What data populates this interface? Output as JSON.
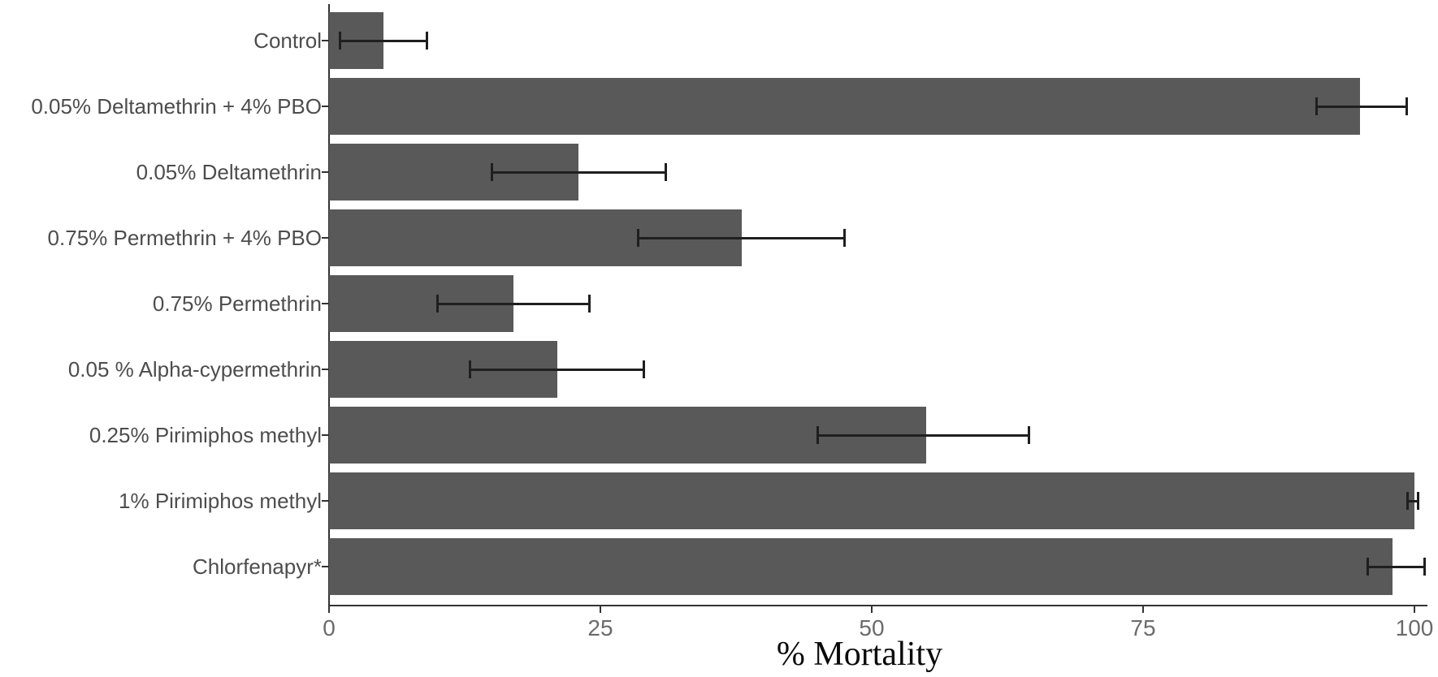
{
  "chart_data": {
    "type": "bar",
    "orientation": "horizontal",
    "title": "",
    "xlabel": "% Mortality",
    "ylabel": "",
    "xlim": [
      0,
      100
    ],
    "xticks": [
      0,
      25,
      50,
      75,
      100
    ],
    "grid": false,
    "legend": false,
    "bar_color": "#595959",
    "error_bar_color": "#1f1f1f",
    "axis_color": "#333333",
    "categories": [
      "Control",
      "0.05% Deltamethrin + 4% PBO",
      "0.05% Deltamethrin",
      "0.75% Permethrin + 4% PBO",
      "0.75% Permethrin",
      "0.05 % Alpha-cypermethrin",
      "0.25% Pirimiphos methyl",
      "1% Pirimiphos methyl",
      "Chlorfenapyr*"
    ],
    "values": [
      5,
      95,
      23,
      38,
      17,
      21,
      55,
      100,
      98
    ],
    "error_low": [
      1,
      91,
      15,
      28.5,
      10,
      13,
      45,
      99.4,
      95.7
    ],
    "error_high": [
      9,
      99.3,
      31,
      47.5,
      24,
      29,
      64.5,
      100.3,
      100.9
    ]
  }
}
